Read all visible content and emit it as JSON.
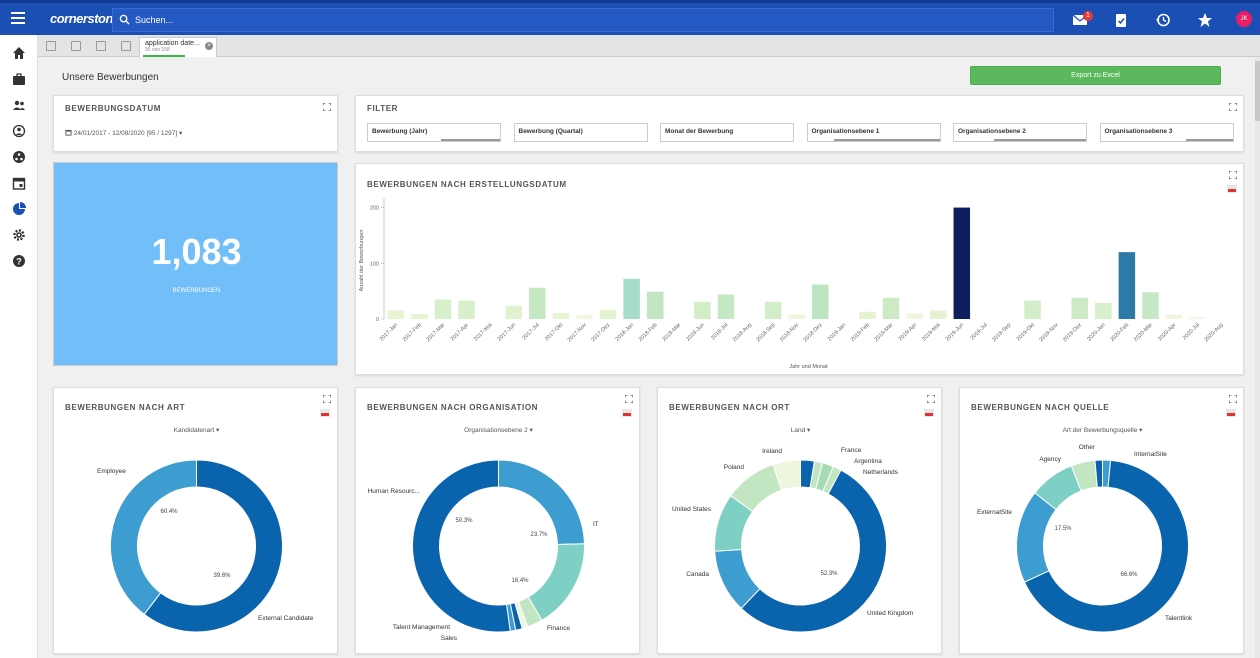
{
  "topbar": {
    "logo": "cornerstone",
    "search_placeholder": "Suchen...",
    "mail_badge": "1",
    "avatar_initials": "JK",
    "icons": [
      "mail-icon",
      "tasks-icon",
      "history-icon",
      "star-icon"
    ]
  },
  "sidebar": {
    "icons": [
      "home-icon",
      "briefcase-icon",
      "people-icon",
      "user-search-icon",
      "network-icon",
      "calendar-icon",
      "analytics-icon",
      "settings-icon",
      "help-icon"
    ]
  },
  "tabstrip": {
    "tab_title": "application date...",
    "tab_subtitle": "95 von 158"
  },
  "page": {
    "title": "Unsere Bewerbungen",
    "export_label": "Export zu Excel"
  },
  "date_panel": {
    "title": "BEWERBUNGSDATUM",
    "value": "24/01/2017 - 12/08/2020 [95 / 1297]"
  },
  "filter_panel": {
    "title": "FILTER",
    "filters": [
      {
        "label": "Bewerbung (Jahr)",
        "fill": 0.45
      },
      {
        "label": "Bewerbung (Quartal)",
        "fill": 0
      },
      {
        "label": "Monat der Bewerbung",
        "fill": 0
      },
      {
        "label": "Organisationsebene 1",
        "fill": 0.8
      },
      {
        "label": "Organisationsebene 2",
        "fill": 0.7
      },
      {
        "label": "Organisationsebene 3",
        "fill": 0.35
      }
    ]
  },
  "kpi": {
    "value": "1,083",
    "label": "BEWERBUNGEN",
    "color": "#71bef8"
  },
  "bar_panel": {
    "title": "BEWERBUNGEN NACH ERSTELLUNGSDATUM"
  },
  "donut_panels": [
    {
      "title": "BEWERBUNGEN NACH ART",
      "dropdown": "Kandidatenart"
    },
    {
      "title": "BEWERBUNGEN NACH ORGANISATION",
      "dropdown": "Organisationsebene 2"
    },
    {
      "title": "BEWERBUNGEN NACH ORT",
      "dropdown": "Land"
    },
    {
      "title": "BEWERBUNGEN NACH QUELLE",
      "dropdown": "Art der Bewerbungsquelle"
    }
  ],
  "chart_data": [
    {
      "type": "bar",
      "xlabel": "Jahr und Monat",
      "ylabel": "Anzahl der Bewerbungen",
      "ylim": [
        0,
        210
      ],
      "yticks": [
        0,
        100,
        200
      ],
      "grid": false,
      "categories": [
        "2017-Jan",
        "2017-Feb",
        "2017-Mär",
        "2017-Apr",
        "2017-Mai",
        "2017-Jun",
        "2017-Jul",
        "2017-Okt",
        "2017-Nov",
        "2017-Dez",
        "2018-Jan",
        "2018-Feb",
        "2018-Mär",
        "2018-Jun",
        "2018-Jul",
        "2018-Aug",
        "2018-Sep",
        "2018-Nov",
        "2018-Dez",
        "2019-Jan",
        "2019-Feb",
        "2019-Mär",
        "2019-Apr",
        "2019-Mai",
        "2019-Jun",
        "2019-Jul",
        "2019-Sep",
        "2019-Okt",
        "2019-Nov",
        "2019-Dez",
        "2020-Jan",
        "2020-Feb",
        "2020-Mär",
        "2020-Apr",
        "2020-Jul",
        "2020-Aug"
      ],
      "values": [
        16,
        9,
        35,
        33,
        0,
        24,
        56,
        11,
        7,
        16,
        72,
        49,
        0,
        31,
        44,
        0,
        31,
        8,
        62,
        0,
        13,
        38,
        10,
        15,
        200,
        0,
        0,
        33,
        0,
        38,
        29,
        120,
        48,
        8,
        4,
        0
      ],
      "colors": [
        "#e8f5d4",
        "#e8f5d4",
        "#d8efcb",
        "#d8efcb",
        "#e8f5d4",
        "#e0f2cf",
        "#c6e8c4",
        "#e8f5d4",
        "#eef7de",
        "#e4f3d2",
        "#a6dcc8",
        "#c2e6c2",
        "#e8f5d4",
        "#d3edc9",
        "#c6e8c4",
        "#e8f5d4",
        "#d3edc9",
        "#eef7de",
        "#bde5c2",
        "#e8f5d4",
        "#e4f3d2",
        "#cdeac6",
        "#eef7de",
        "#e4f3d2",
        "#0d1f5c",
        "#e8f5d4",
        "#e8f5d4",
        "#d3edc9",
        "#e8f5d4",
        "#cdeac6",
        "#d8efcb",
        "#2e7aa6",
        "#c6e8c4",
        "#eef7de",
        "#f3f9e6",
        "#e8f5d4"
      ]
    },
    {
      "type": "pie",
      "title": "BEWERBUNGEN NACH ART",
      "slices": [
        {
          "label": "External Candidate",
          "value": 60.4,
          "color": "#0a64ad",
          "pct": "60.4%"
        },
        {
          "label": "Employee",
          "value": 39.6,
          "color": "#3e9dd0",
          "pct": "39.6%"
        }
      ]
    },
    {
      "type": "pie",
      "title": "BEWERBUNGEN NACH ORGANISATION",
      "slices": [
        {
          "label": "IT",
          "value": 23.7,
          "color": "#3e9dd0",
          "pct": "23.7%"
        },
        {
          "label": "Finance",
          "value": 16.4,
          "color": "#7ed0c4",
          "pct": "16.4%"
        },
        {
          "label": "Sales",
          "value": 2.8,
          "color": "#c2e6c2",
          "pct": ""
        },
        {
          "label": "",
          "value": 1.0,
          "color": "#eef7de",
          "pct": ""
        },
        {
          "label": "",
          "value": 1.2,
          "color": "#0a64ad",
          "pct": ""
        },
        {
          "label": "Talent Management",
          "value": 1.0,
          "color": "#3e9dd0",
          "pct": ""
        },
        {
          "label": "Human Resourc...",
          "value": 50.3,
          "color": "#0a64ad",
          "pct": "50.3%"
        }
      ]
    },
    {
      "type": "pie",
      "title": "BEWERBUNGEN NACH ORT",
      "slices": [
        {
          "label": "",
          "value": 2.5,
          "color": "#0a64ad",
          "pct": ""
        },
        {
          "label": "France",
          "value": 1.5,
          "color": "#c2e6c2",
          "pct": ""
        },
        {
          "label": "Argentina",
          "value": 2.0,
          "color": "#a6dcb2",
          "pct": ""
        },
        {
          "label": "Netherlands",
          "value": 1.5,
          "color": "#c2e6c2",
          "pct": ""
        },
        {
          "label": "United Kingdom",
          "value": 52.3,
          "color": "#0a64ad",
          "pct": "52.3%"
        },
        {
          "label": "Canada",
          "value": 11.5,
          "color": "#3e9dd0",
          "pct": ""
        },
        {
          "label": "United States",
          "value": 10.5,
          "color": "#7ed0c4",
          "pct": ""
        },
        {
          "label": "Poland",
          "value": 9.5,
          "color": "#c2e6c2",
          "pct": ""
        },
        {
          "label": "Ireland",
          "value": 5.0,
          "color": "#eef7de",
          "pct": ""
        }
      ]
    },
    {
      "type": "pie",
      "title": "BEWERBUNGEN NACH QUELLE",
      "slices": [
        {
          "label": "InternalSite",
          "value": 1.5,
          "color": "#3e9dd0",
          "pct": ""
        },
        {
          "label": "Talentlink",
          "value": 66.6,
          "color": "#0a64ad",
          "pct": "66.6%"
        },
        {
          "label": "ExternalSite",
          "value": 17.5,
          "color": "#3e9dd0",
          "pct": "17.5%"
        },
        {
          "label": "Agency",
          "value": 8.5,
          "color": "#7ed0c4",
          "pct": ""
        },
        {
          "label": "Other",
          "value": 4.5,
          "color": "#c2e6c2",
          "pct": ""
        },
        {
          "label": "",
          "value": 1.4,
          "color": "#0a64ad",
          "pct": ""
        }
      ]
    }
  ]
}
